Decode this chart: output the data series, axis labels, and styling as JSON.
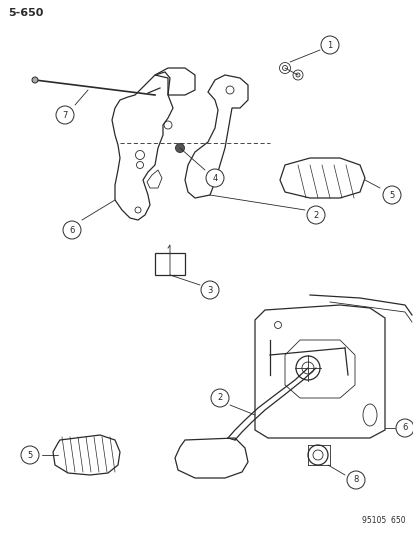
{
  "page_label": "5-650",
  "part_number": "95105  650",
  "background_color": "#ffffff",
  "line_color": "#2a2a2a",
  "figsize": [
    4.14,
    5.33
  ],
  "dpi": 100
}
